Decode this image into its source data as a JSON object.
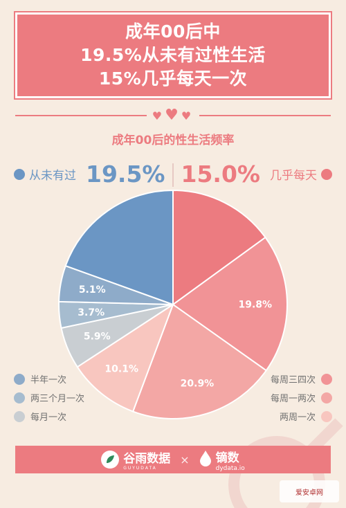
{
  "header": {
    "lines": [
      "成年00后中",
      "19.5%从未有过性生活",
      "15%几乎每天一次"
    ]
  },
  "subtitle": "成年00后的性生活频率",
  "highlight_left": {
    "label": "从未有过",
    "value": "19.5%"
  },
  "highlight_right": {
    "label": "几乎每天",
    "value": "15.0%"
  },
  "legend_left": [
    "半年一次",
    "两三个月一次",
    "每月一次"
  ],
  "legend_right": [
    "每周三四次",
    "每周一两次",
    "两周一次"
  ],
  "footer": {
    "brand_left": "谷雨数据",
    "brand_left_sub": "GUYUDATA",
    "times": "×",
    "brand_right": "镝数",
    "brand_right_sub": "dydata.io"
  },
  "site_badge": "爱安卓网",
  "colors": {
    "pink": "#ec7b80",
    "blue": "#6b96c4",
    "bg": "#f7ece1"
  },
  "chart_data": {
    "type": "pie",
    "title": "成年00后的性生活频率",
    "slices": [
      {
        "name": "几乎每天",
        "value": 15.0,
        "label": "",
        "color": "#ec7b80"
      },
      {
        "name": "每周三四次",
        "value": 19.8,
        "label": "19.8%",
        "color": "#f19396"
      },
      {
        "name": "每周一两次",
        "value": 20.9,
        "label": "20.9%",
        "color": "#f3a7a5"
      },
      {
        "name": "两周一次",
        "value": 10.1,
        "label": "10.1%",
        "color": "#f8c6bf"
      },
      {
        "name": "每月一次",
        "value": 5.9,
        "label": "5.9%",
        "color": "#c9ced2"
      },
      {
        "name": "两三个月一次",
        "value": 3.7,
        "label": "3.7%",
        "color": "#a6bccf"
      },
      {
        "name": "半年一次",
        "value": 5.1,
        "label": "5.1%",
        "color": "#8eabc9"
      },
      {
        "name": "从未有过",
        "value": 19.5,
        "label": "",
        "color": "#6b96c4"
      }
    ]
  }
}
